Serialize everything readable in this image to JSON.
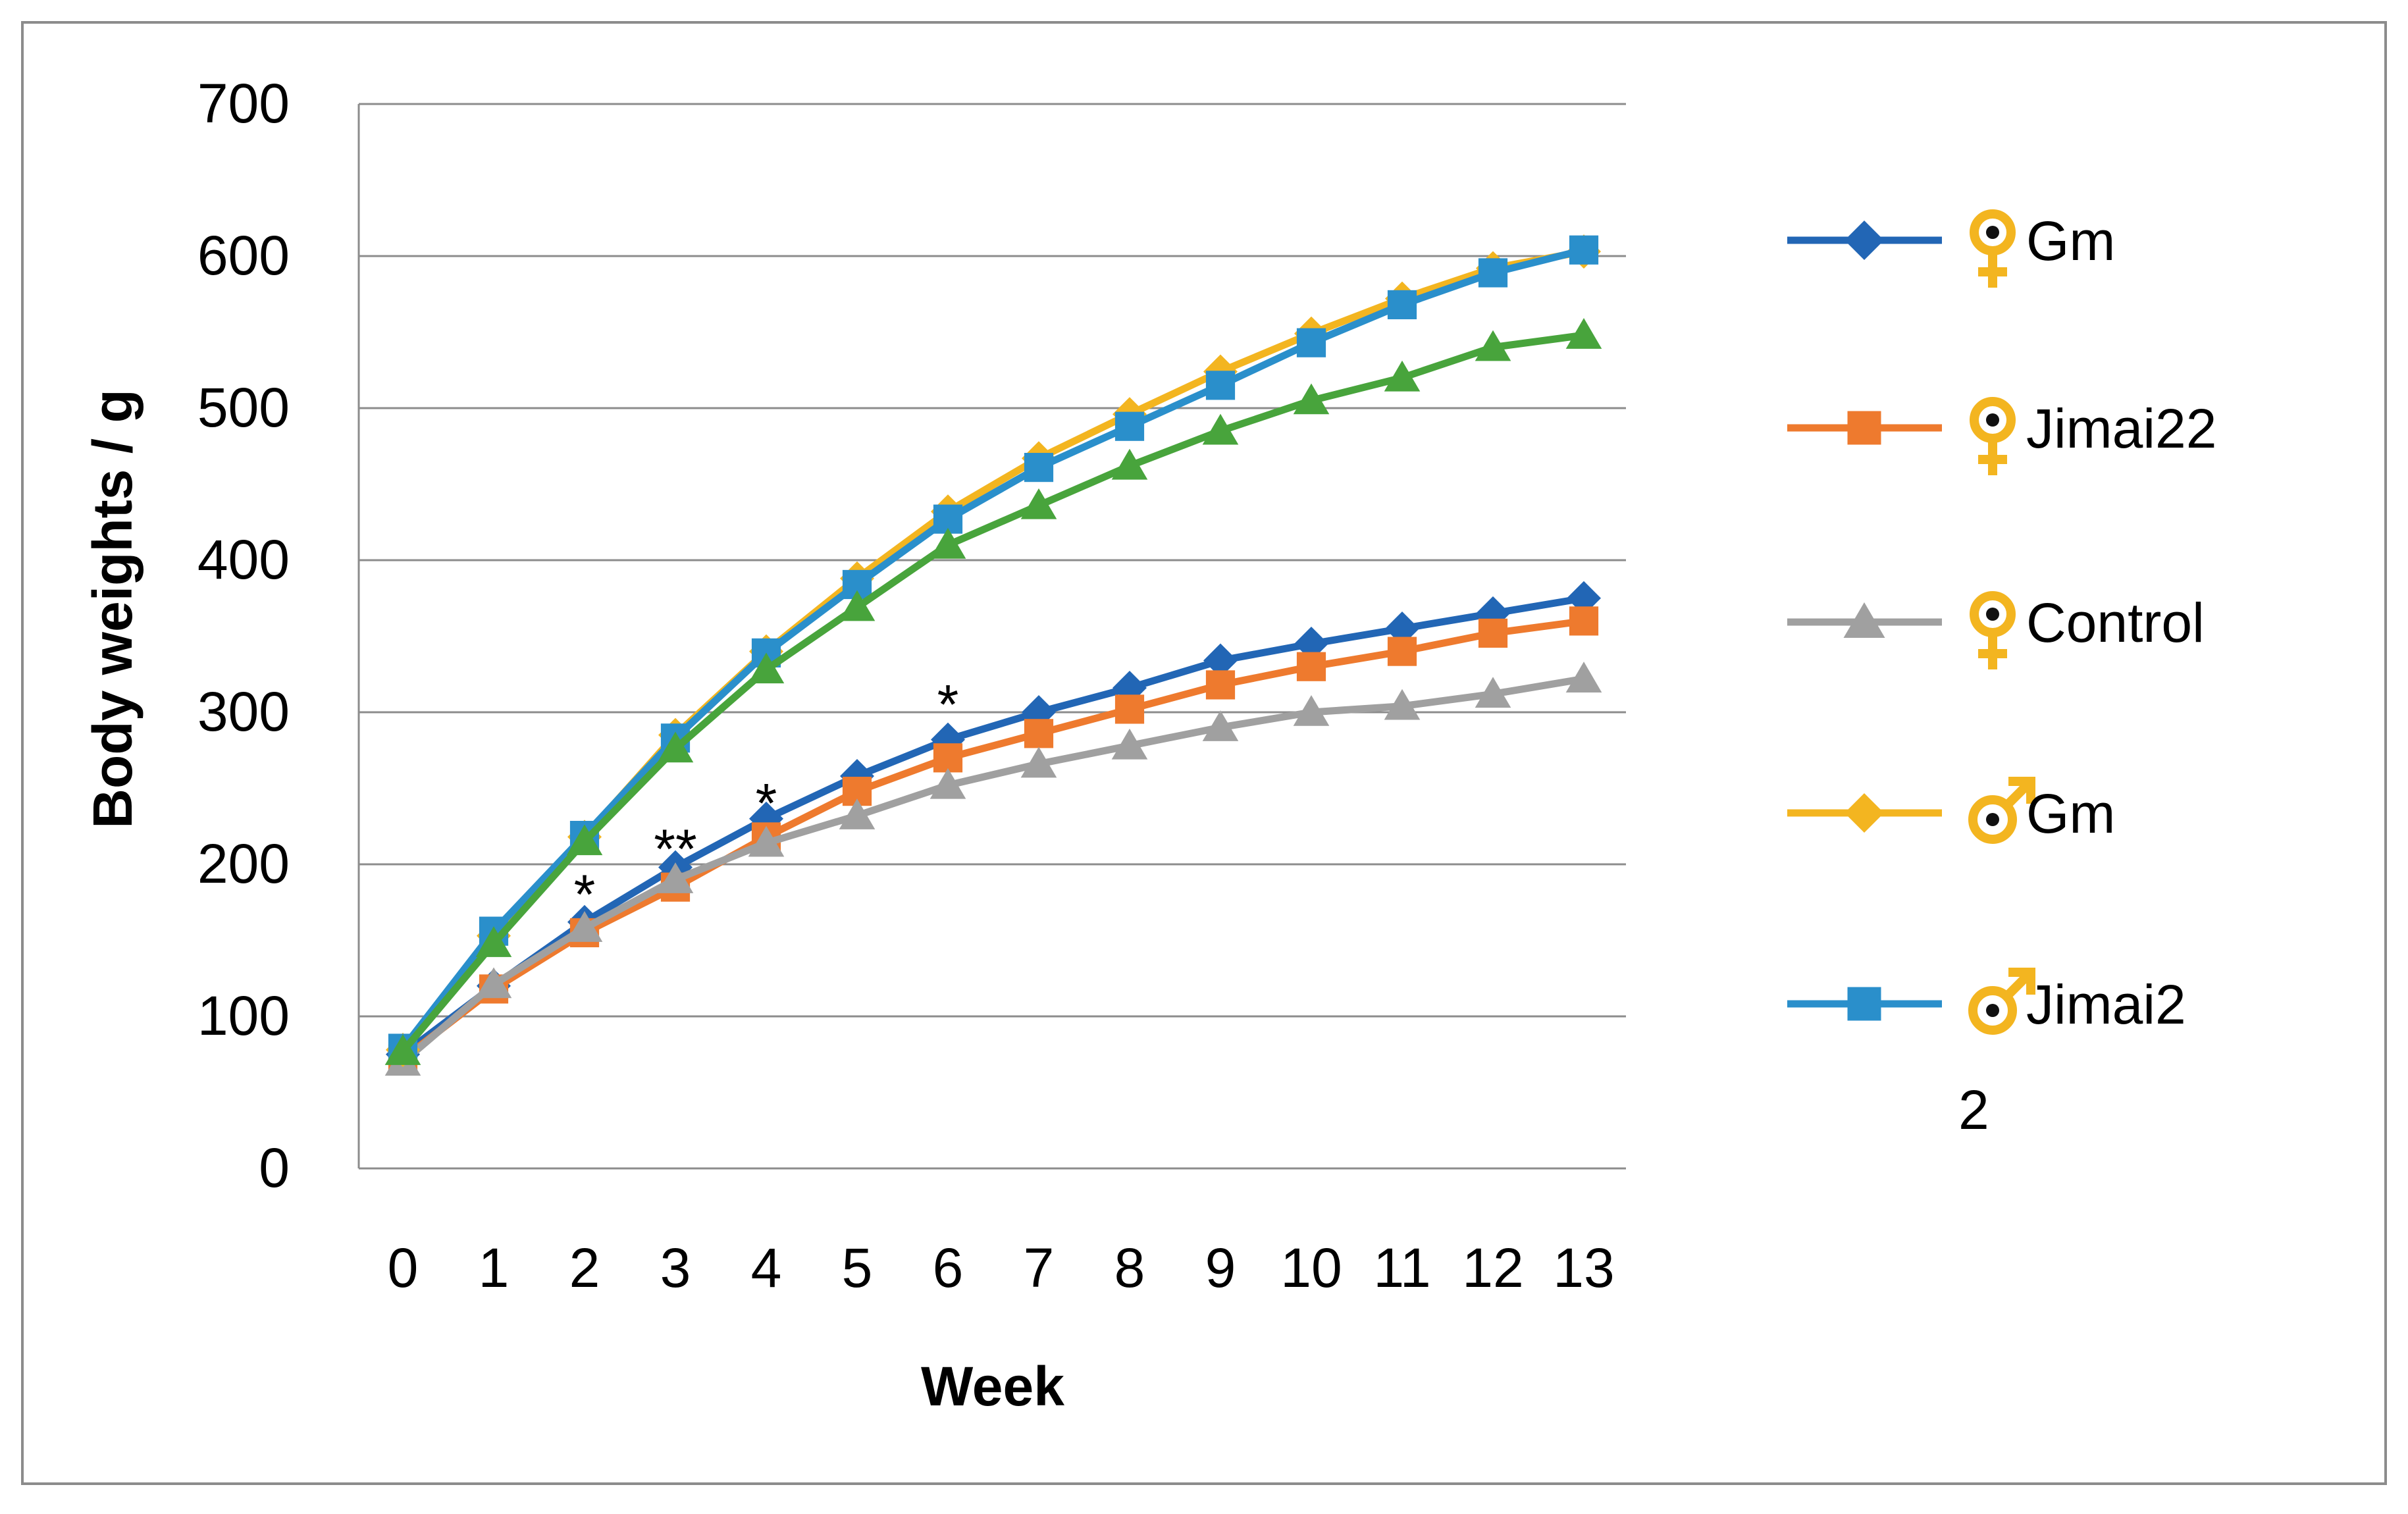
{
  "chart_data": {
    "type": "line",
    "title": "",
    "xlabel": "Week",
    "ylabel": "Body weights / g",
    "ylim": [
      0,
      700
    ],
    "y_ticks": [
      "0",
      "100",
      "200",
      "300",
      "400",
      "500",
      "600",
      "700"
    ],
    "categories": [
      "0",
      "1",
      "2",
      "3",
      "4",
      "5",
      "6",
      "7",
      "8",
      "9",
      "10",
      "11",
      "12",
      "13"
    ],
    "grid": "horizontal",
    "legend_position": "right",
    "series": [
      {
        "name": "Gm",
        "symbol": "♀",
        "color": "#2266b5",
        "marker": "diamond",
        "values": [
          75,
          120,
          162,
          198,
          230,
          258,
          282,
          300,
          316,
          334,
          345,
          355,
          365,
          375
        ]
      },
      {
        "name": "Jimai22",
        "symbol": "♀",
        "color": "#ee7a2e",
        "marker": "square",
        "values": [
          72,
          118,
          155,
          185,
          218,
          248,
          270,
          286,
          302,
          318,
          330,
          340,
          352,
          360
        ]
      },
      {
        "name": "Control",
        "symbol": "♀",
        "color": "#a0a0a0",
        "marker": "triangle",
        "values": [
          70,
          121,
          158,
          190,
          214,
          232,
          252,
          266,
          278,
          290,
          300,
          304,
          312,
          322
        ]
      },
      {
        "name": "Gm",
        "symbol": "♂",
        "color": "#f3b520",
        "marker": "diamond",
        "values": [
          78,
          153,
          218,
          285,
          340,
          388,
          432,
          467,
          496,
          524,
          549,
          572,
          592,
          603
        ]
      },
      {
        "name": "Jimai2\n2",
        "symbol": "♂",
        "color": "#2a8fcb",
        "marker": "square",
        "values": [
          79,
          156,
          219,
          283,
          339,
          384,
          427,
          461,
          488,
          515,
          543,
          568,
          589,
          604
        ]
      },
      {
        "name": "",
        "symbol": "",
        "color": "#48a43c",
        "marker": "triangle",
        "values": [
          77,
          148,
          215,
          276,
          328,
          369,
          410,
          436,
          462,
          485,
          505,
          520,
          540,
          548
        ]
      }
    ],
    "annotations": [
      {
        "text": "*",
        "x": "2",
        "y": 185
      },
      {
        "text": "**",
        "x": "3",
        "y": 215
      },
      {
        "text": "*",
        "x": "4",
        "y": 245
      },
      {
        "text": "*",
        "x": "6",
        "y": 310
      }
    ]
  }
}
